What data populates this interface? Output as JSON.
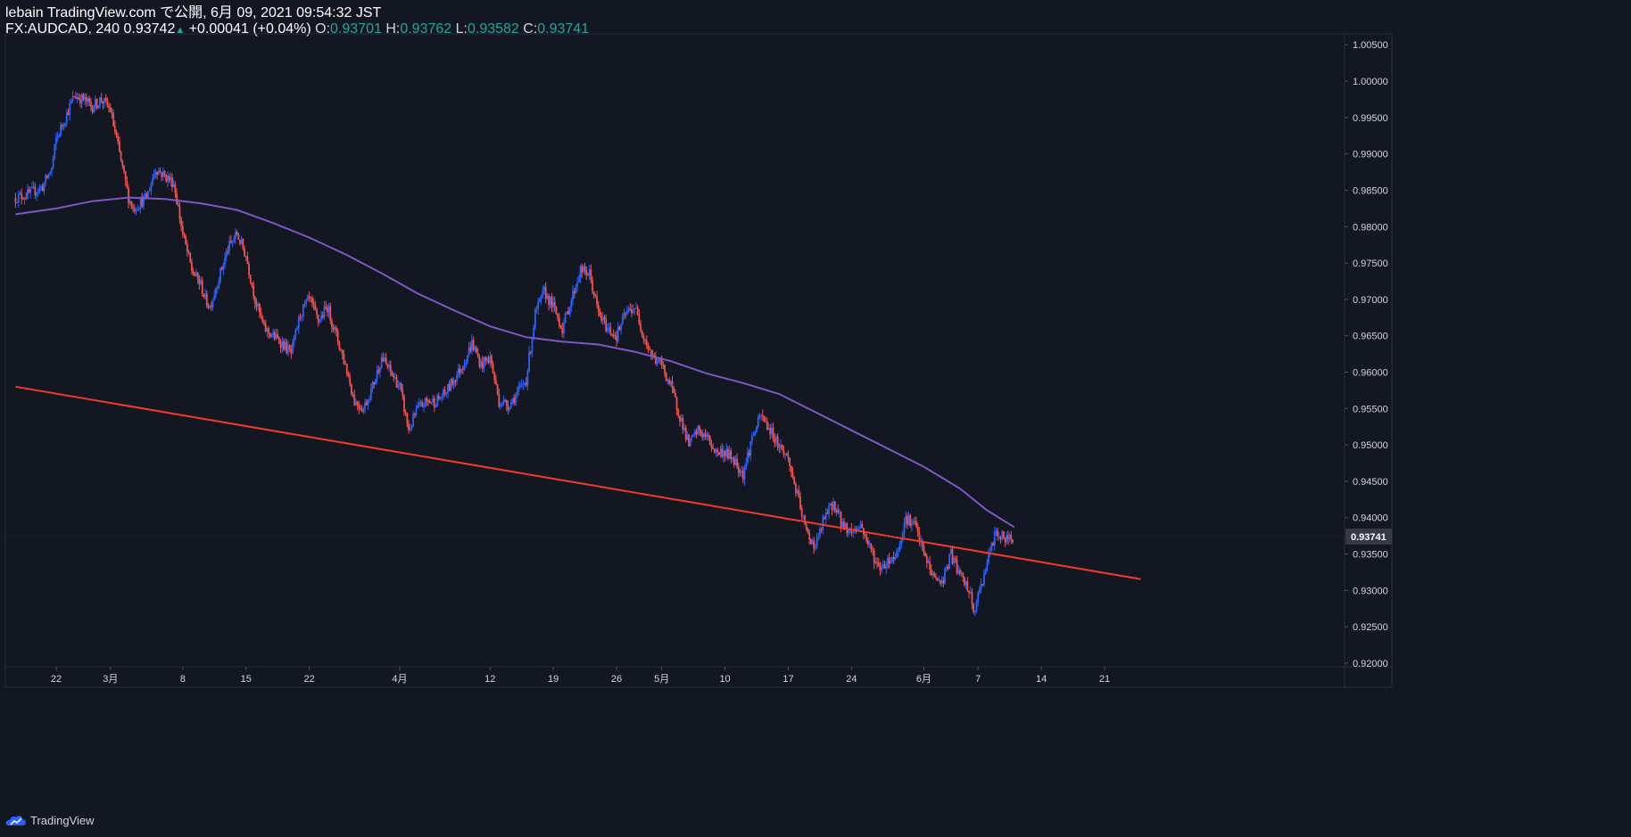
{
  "header": {
    "publish_line": "lebain TradingView.com で公開, 6月 09, 2021 09:54:32 JST",
    "symbol": "FX:AUDCAD, 240",
    "last": "0.93742",
    "change": "+0.00041 (+0.04%)",
    "o_label": "O:",
    "o_value": "0.93701",
    "h_label": "H:",
    "h_value": "0.93762",
    "l_label": "L:",
    "l_value": "0.93582",
    "c_label": "C:",
    "c_value": "0.93741"
  },
  "footer": {
    "brand": "TradingView",
    "logo_icon": "tradingview-cloud-icon"
  },
  "colors": {
    "background": "#131722",
    "grid": "#1e222d",
    "up": "#2962ff",
    "down": "#ef5350",
    "ma": "#7e57c2",
    "trendline": "#f23a2f",
    "axis_text": "#d1d4dc",
    "price_tag_bg": "#363a45"
  },
  "chart_data": {
    "type": "candlestick",
    "symbol": "FX:AUDCAD",
    "timeframe": "240",
    "ylim": [
      0.9195,
      1.0065
    ],
    "y_ticks": [
      "1.00500",
      "1.00000",
      "0.99500",
      "0.99000",
      "0.98500",
      "0.98000",
      "0.97500",
      "0.97000",
      "0.96500",
      "0.96000",
      "0.95500",
      "0.95000",
      "0.94500",
      "0.94000",
      "0.93500",
      "0.93000",
      "0.92500",
      "0.92000"
    ],
    "x_ticks": [
      "22",
      "3月",
      "8",
      "15",
      "22",
      "4月",
      "12",
      "19",
      "26",
      "5月",
      "10",
      "17",
      "24",
      "6月",
      "7",
      "14",
      "21"
    ],
    "x_tick_days": [
      0,
      6,
      14,
      21,
      28,
      38,
      48,
      55,
      62,
      67,
      74,
      81,
      88,
      96,
      102,
      109,
      116
    ],
    "last_price_label": "0.93741",
    "last_price": 0.93741,
    "price_path": [
      [
        -4.5,
        0.984
      ],
      [
        -3,
        0.9845
      ],
      [
        -1.5,
        0.9855
      ],
      [
        -0.5,
        0.988
      ],
      [
        0,
        0.992
      ],
      [
        1,
        0.995
      ],
      [
        2,
        0.998
      ],
      [
        3,
        0.9975
      ],
      [
        4,
        0.9965
      ],
      [
        5,
        0.9975
      ],
      [
        6,
        0.996
      ],
      [
        7,
        0.99
      ],
      [
        8,
        0.984
      ],
      [
        8.5,
        0.9825
      ],
      [
        9,
        0.983
      ],
      [
        10,
        0.984
      ],
      [
        11,
        0.988
      ],
      [
        12,
        0.987
      ],
      [
        13,
        0.986
      ],
      [
        14,
        0.979
      ],
      [
        15,
        0.974
      ],
      [
        16,
        0.972
      ],
      [
        16.5,
        0.97
      ],
      [
        17,
        0.969
      ],
      [
        18,
        0.973
      ],
      [
        19,
        0.977
      ],
      [
        20,
        0.979
      ],
      [
        21,
        0.976
      ],
      [
        22,
        0.97
      ],
      [
        23,
        0.966
      ],
      [
        24,
        0.965
      ],
      [
        25,
        0.964
      ],
      [
        26,
        0.9625
      ],
      [
        27,
        0.968
      ],
      [
        28,
        0.97
      ],
      [
        29,
        0.967
      ],
      [
        30,
        0.969
      ],
      [
        31,
        0.965
      ],
      [
        32,
        0.961
      ],
      [
        33,
        0.956
      ],
      [
        34,
        0.955
      ],
      [
        35,
        0.958
      ],
      [
        36,
        0.962
      ],
      [
        37,
        0.96
      ],
      [
        38,
        0.958
      ],
      [
        39,
        0.952
      ],
      [
        40,
        0.955
      ],
      [
        41,
        0.956
      ],
      [
        42,
        0.956
      ],
      [
        43,
        0.957
      ],
      [
        44,
        0.959
      ],
      [
        45,
        0.961
      ],
      [
        46,
        0.964
      ],
      [
        47,
        0.961
      ],
      [
        48,
        0.962
      ],
      [
        49,
        0.956
      ],
      [
        50,
        0.9555
      ],
      [
        51,
        0.957
      ],
      [
        52,
        0.959
      ],
      [
        53,
        0.968
      ],
      [
        54,
        0.971
      ],
      [
        55,
        0.969
      ],
      [
        56,
        0.966
      ],
      [
        57,
        0.97
      ],
      [
        58,
        0.974
      ],
      [
        59,
        0.9735
      ],
      [
        60,
        0.968
      ],
      [
        61,
        0.966
      ],
      [
        62,
        0.965
      ],
      [
        63,
        0.968
      ],
      [
        64,
        0.969
      ],
      [
        65,
        0.965
      ],
      [
        66,
        0.962
      ],
      [
        67,
        0.961
      ],
      [
        68,
        0.958
      ],
      [
        69,
        0.954
      ],
      [
        70,
        0.95
      ],
      [
        71,
        0.952
      ],
      [
        72,
        0.951
      ],
      [
        73,
        0.949
      ],
      [
        74,
        0.949
      ],
      [
        75,
        0.948
      ],
      [
        76,
        0.946
      ],
      [
        77,
        0.951
      ],
      [
        78,
        0.954
      ],
      [
        79,
        0.952
      ],
      [
        80,
        0.95
      ],
      [
        81,
        0.948
      ],
      [
        82,
        0.943
      ],
      [
        83,
        0.938
      ],
      [
        84,
        0.936
      ],
      [
        85,
        0.94
      ],
      [
        86,
        0.942
      ],
      [
        87,
        0.939
      ],
      [
        88,
        0.938
      ],
      [
        89,
        0.939
      ],
      [
        90,
        0.936
      ],
      [
        91,
        0.933
      ],
      [
        92,
        0.934
      ],
      [
        93,
        0.935
      ],
      [
        94,
        0.94
      ],
      [
        95,
        0.939
      ],
      [
        96,
        0.935
      ],
      [
        97,
        0.932
      ],
      [
        98,
        0.931
      ],
      [
        99,
        0.935
      ],
      [
        100,
        0.932
      ],
      [
        101,
        0.93
      ],
      [
        101.5,
        0.927
      ],
      [
        102,
        0.929
      ],
      [
        103,
        0.934
      ],
      [
        104,
        0.938
      ],
      [
        105,
        0.937
      ],
      [
        106,
        0.9374
      ]
    ],
    "moving_average": [
      [
        -4.5,
        0.9817
      ],
      [
        0,
        0.9825
      ],
      [
        4,
        0.9835
      ],
      [
        8,
        0.984
      ],
      [
        12,
        0.9838
      ],
      [
        16,
        0.9832
      ],
      [
        20,
        0.9823
      ],
      [
        24,
        0.9805
      ],
      [
        28,
        0.9785
      ],
      [
        32,
        0.9762
      ],
      [
        36,
        0.9736
      ],
      [
        40,
        0.9708
      ],
      [
        44,
        0.9685
      ],
      [
        48,
        0.9663
      ],
      [
        52,
        0.9648
      ],
      [
        56,
        0.9642
      ],
      [
        60,
        0.9638
      ],
      [
        64,
        0.9628
      ],
      [
        68,
        0.9615
      ],
      [
        72,
        0.9598
      ],
      [
        76,
        0.9585
      ],
      [
        80,
        0.957
      ],
      [
        84,
        0.9545
      ],
      [
        88,
        0.952
      ],
      [
        92,
        0.9495
      ],
      [
        96,
        0.947
      ],
      [
        100,
        0.944
      ],
      [
        103,
        0.941
      ],
      [
        106,
        0.9387
      ]
    ],
    "trendline": {
      "from": [
        -4.5,
        0.958
      ],
      "to": [
        120,
        0.9356
      ]
    }
  }
}
